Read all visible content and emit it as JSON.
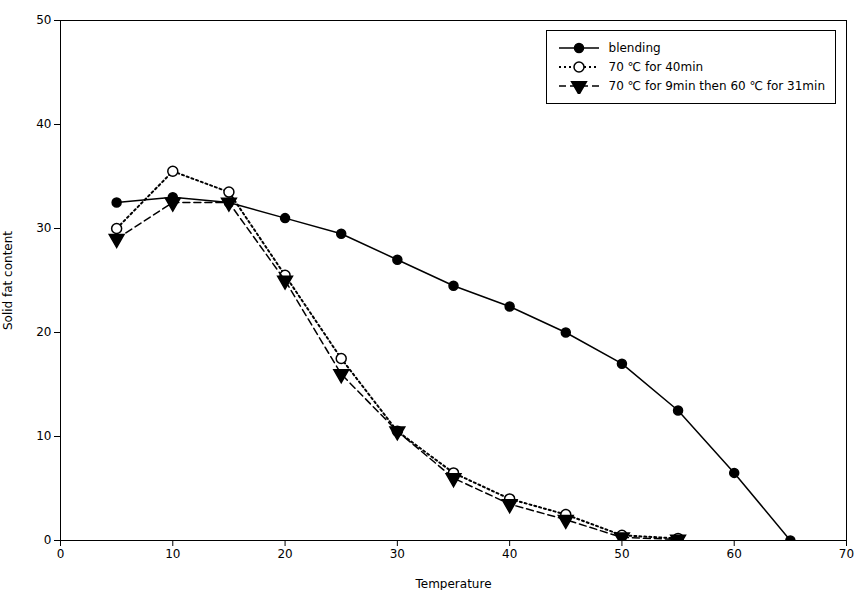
{
  "chart_data": {
    "type": "line",
    "xlabel": "Temperature",
    "ylabel": "Solid fat content",
    "xlim": [
      0,
      70
    ],
    "ylim": [
      0,
      50
    ],
    "xticks": [
      0,
      10,
      20,
      30,
      40,
      50,
      60,
      70
    ],
    "yticks": [
      0,
      10,
      20,
      30,
      40,
      50
    ],
    "grid": false,
    "legend": "upper right",
    "series": [
      {
        "name": "blending",
        "color": "#000000",
        "marker": "circle",
        "line_style": "solid",
        "x": [
          5,
          10,
          15,
          20,
          25,
          30,
          35,
          40,
          45,
          50,
          55,
          60,
          65
        ],
        "values": [
          32.5,
          33.0,
          32.5,
          31.0,
          29.5,
          27.0,
          24.5,
          22.5,
          20.0,
          17.0,
          12.5,
          6.5,
          0.0
        ]
      },
      {
        "name": "70 ℃ for 40min",
        "color": "#000000",
        "marker": "open_circle",
        "line_style": "dotted",
        "x": [
          5,
          10,
          15,
          20,
          25,
          30,
          35,
          40,
          45,
          50,
          55
        ],
        "values": [
          30.0,
          35.5,
          33.5,
          25.5,
          17.5,
          10.5,
          6.5,
          4.0,
          2.5,
          0.5,
          0.2
        ]
      },
      {
        "name": "70 ℃ for 9min then 60 ℃ for 31min",
        "color": "#000000",
        "marker": "triangle_down",
        "line_style": "dashed",
        "x": [
          5,
          10,
          15,
          20,
          25,
          30,
          35,
          40,
          45,
          50,
          55
        ],
        "values": [
          29.0,
          32.5,
          32.5,
          25.0,
          16.0,
          10.5,
          6.0,
          3.5,
          2.0,
          0.3,
          0.1
        ]
      }
    ]
  }
}
